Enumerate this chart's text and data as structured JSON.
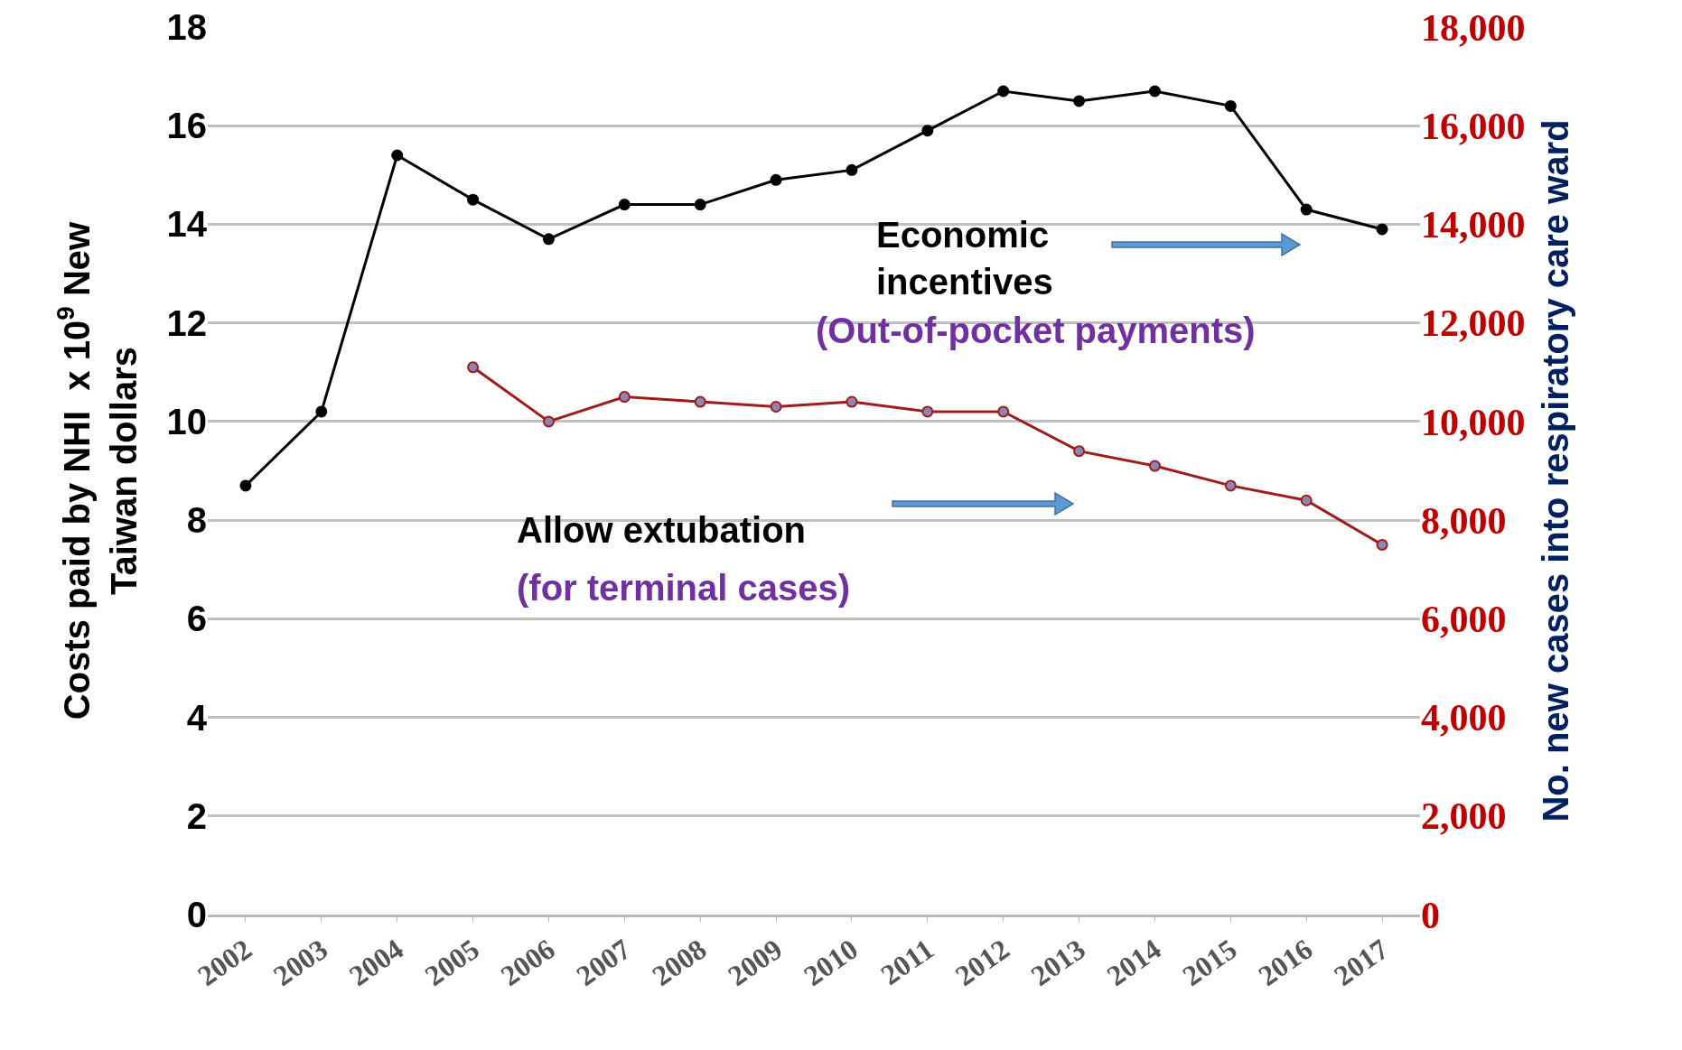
{
  "chart_data": {
    "type": "line",
    "categories": [
      "2002",
      "2003",
      "2004",
      "2005",
      "2006",
      "2007",
      "2008",
      "2009",
      "2010",
      "2011",
      "2012",
      "2013",
      "2014",
      "2015",
      "2016",
      "2017"
    ],
    "ylabel": "Costs paid by NHI  x 10$^{9}$ New Taiwan dollars",
    "y2label": "No. new cases into respiratory care ward",
    "series": [
      {
        "color": "#000000",
        "values": [
          8.7,
          10.2,
          15.4,
          14.5,
          13.7,
          14.4,
          14.4,
          14.9,
          15.1,
          15.9,
          16.7,
          16.5,
          16.7,
          16.4,
          14.3,
          13.9
        ]
      },
      {
        "color": "#a01c1c",
        "axis": "y2",
        "values": [
          null,
          null,
          null,
          11100,
          10000,
          10500,
          10400,
          10300,
          10400,
          10200,
          10200,
          9400,
          9100,
          8700,
          8400,
          7500
        ]
      }
    ],
    "ylim": [
      0,
      18
    ],
    "yticks": [
      0,
      2,
      4,
      6,
      8,
      10,
      12,
      14,
      16,
      18
    ],
    "y2lim": [
      0,
      18000
    ],
    "y2ticks": [
      {
        "value": 0,
        "label": "0"
      },
      {
        "value": 2000,
        "label": "2,000"
      },
      {
        "value": 4000,
        "label": "4,000"
      },
      {
        "value": 6000,
        "label": "6,000"
      },
      {
        "value": 8000,
        "label": "8,000"
      },
      {
        "value": 10000,
        "label": "10,000"
      },
      {
        "value": 12000,
        "label": "12,000"
      },
      {
        "value": 14000,
        "label": "14,000"
      },
      {
        "value": 16000,
        "label": "16,000"
      },
      {
        "value": 18000,
        "label": "18,000"
      }
    ],
    "annotations": [
      "Economic incentives",
      "(Out-of-pocket payments)",
      "Allow extubation",
      "(for terminal cases)"
    ],
    "grid": "y",
    "marker": "circle",
    "line_style": "solid"
  }
}
